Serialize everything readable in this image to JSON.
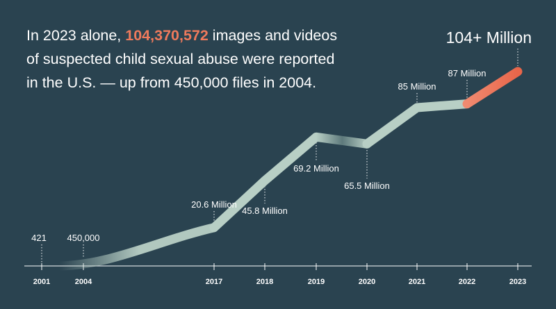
{
  "headline": {
    "part1": "In 2023 alone, ",
    "highlight": "104,370,572",
    "part2": " images and videos of suspected child sexual abuse were reported in the U.S. — up from 450,000 files in 2004."
  },
  "colors": {
    "background": "#2a4350",
    "line_light": "#b8cfc5",
    "highlight": "#ef7a5c",
    "text": "#ffffff"
  },
  "chart_data": {
    "type": "line",
    "categories": [
      "2001",
      "2004",
      "2017",
      "2018",
      "2019",
      "2020",
      "2021",
      "2022",
      "2023"
    ],
    "values": [
      421,
      450000,
      20600000,
      45800000,
      69200000,
      65500000,
      85000000,
      87000000,
      104370572
    ],
    "data_labels": [
      "421",
      "450,000",
      "20.6 Million",
      "45.8 Million",
      "69.2 Million",
      "65.5 Million",
      "85 Million",
      "87 Million",
      "104+ Million"
    ],
    "highlight_segment": [
      "2022",
      "2023"
    ],
    "grid": false
  }
}
